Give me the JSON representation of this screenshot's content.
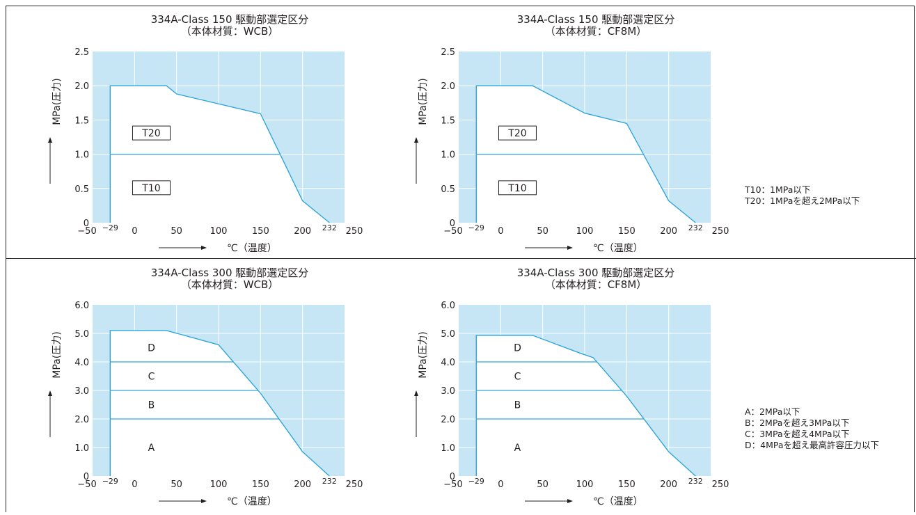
{
  "chart_data": [
    {
      "type": "area",
      "title": "334A-Class 150 駆動部選定区分",
      "subtitle": "（本体材質：WCB）",
      "xlabel": "℃（温度）",
      "ylabel": "MPa(圧力)",
      "xlim": [
        -50,
        250
      ],
      "ylim": [
        0,
        2.5
      ],
      "x_ticks": [
        "−50",
        "−29",
        "0",
        "50",
        "100",
        "150",
        "200",
        "232",
        "250"
      ],
      "x_tick_values": [
        -50,
        -29,
        0,
        50,
        100,
        150,
        200,
        232,
        250
      ],
      "y_ticks": [
        "0",
        "0.5",
        "1.0",
        "1.5",
        "2.0",
        "2.5"
      ],
      "y_tick_values": [
        0,
        0.5,
        1.0,
        1.5,
        2.0,
        2.5
      ],
      "envelope": [
        [
          -29,
          0
        ],
        [
          -29,
          2.0
        ],
        [
          38,
          2.0
        ],
        [
          50,
          1.88
        ],
        [
          150,
          1.59
        ],
        [
          200,
          0.32
        ],
        [
          232,
          0
        ]
      ],
      "divisions": [
        1.0
      ],
      "region_labels": [
        {
          "label": "T20",
          "x": 20,
          "y": 1.31
        },
        {
          "label": "T10",
          "x": 20,
          "y": 0.51
        }
      ]
    },
    {
      "type": "area",
      "title": "334A-Class 150 駆動部選定区分",
      "subtitle": "（本体材質：CF8M）",
      "xlabel": "℃（温度）",
      "ylabel": "MPa(圧力)",
      "xlim": [
        -50,
        250
      ],
      "ylim": [
        0,
        2.5
      ],
      "x_ticks": [
        "−50",
        "−29",
        "0",
        "50",
        "100",
        "150",
        "200",
        "232",
        "250"
      ],
      "x_tick_values": [
        -50,
        -29,
        0,
        50,
        100,
        150,
        200,
        232,
        250
      ],
      "y_ticks": [
        "0",
        "0.5",
        "1.0",
        "1.5",
        "2.0",
        "2.5"
      ],
      "y_tick_values": [
        0,
        0.5,
        1.0,
        1.5,
        2.0,
        2.5
      ],
      "envelope": [
        [
          -29,
          0
        ],
        [
          -29,
          2.0
        ],
        [
          38,
          2.0
        ],
        [
          100,
          1.6
        ],
        [
          150,
          1.45
        ],
        [
          200,
          0.32
        ],
        [
          232,
          0
        ]
      ],
      "divisions": [
        1.0
      ],
      "region_labels": [
        {
          "label": "T20",
          "x": 20,
          "y": 1.31
        },
        {
          "label": "T10",
          "x": 20,
          "y": 0.51
        }
      ]
    },
    {
      "type": "area",
      "title": "334A-Class 300 駆動部選定区分",
      "subtitle": "（本体材質：WCB）",
      "xlabel": "℃（温度）",
      "ylabel": "MPa(圧力)",
      "xlim": [
        -50,
        250
      ],
      "ylim": [
        0,
        6.0
      ],
      "x_ticks": [
        "−50",
        "−29",
        "0",
        "50",
        "100",
        "150",
        "200",
        "232",
        "250"
      ],
      "x_tick_values": [
        -50,
        -29,
        0,
        50,
        100,
        150,
        200,
        232,
        250
      ],
      "y_ticks": [
        "0",
        "1.0",
        "2.0",
        "3.0",
        "4.0",
        "5.0",
        "6.0"
      ],
      "y_tick_values": [
        0,
        1.0,
        2.0,
        3.0,
        4.0,
        5.0,
        6.0
      ],
      "envelope": [
        [
          -29,
          0
        ],
        [
          -29,
          5.1
        ],
        [
          38,
          5.1
        ],
        [
          100,
          4.6
        ],
        [
          150,
          2.9
        ],
        [
          200,
          0.85
        ],
        [
          232,
          0
        ]
      ],
      "divisions": [
        2.0,
        3.0,
        4.0
      ],
      "region_labels": [
        {
          "label": "D",
          "x": 20,
          "y": 4.5
        },
        {
          "label": "C",
          "x": 20,
          "y": 3.5
        },
        {
          "label": "B",
          "x": 20,
          "y": 2.5
        },
        {
          "label": "A",
          "x": 20,
          "y": 1.0
        }
      ]
    },
    {
      "type": "area",
      "title": "334A-Class 300 駆動部選定区分",
      "subtitle": "（本体材質：CF8M）",
      "xlabel": "℃（温度）",
      "ylabel": "MPa(圧力)",
      "xlim": [
        -50,
        250
      ],
      "ylim": [
        0,
        6.0
      ],
      "x_ticks": [
        "−50",
        "−29",
        "0",
        "50",
        "100",
        "150",
        "200",
        "232",
        "250"
      ],
      "x_tick_values": [
        -50,
        -29,
        0,
        50,
        100,
        150,
        200,
        232,
        250
      ],
      "y_ticks": [
        "0",
        "1.0",
        "2.0",
        "3.0",
        "4.0",
        "5.0",
        "6.0"
      ],
      "y_tick_values": [
        0,
        1.0,
        2.0,
        3.0,
        4.0,
        5.0,
        6.0
      ],
      "envelope": [
        [
          -29,
          0
        ],
        [
          -29,
          4.93
        ],
        [
          38,
          4.93
        ],
        [
          95,
          4.3
        ],
        [
          110,
          4.15
        ],
        [
          150,
          2.8
        ],
        [
          200,
          0.85
        ],
        [
          232,
          0
        ]
      ],
      "divisions": [
        2.0,
        3.0,
        4.0
      ],
      "region_labels": [
        {
          "label": "D",
          "x": 20,
          "y": 4.5
        },
        {
          "label": "C",
          "x": 20,
          "y": 3.5
        },
        {
          "label": "B",
          "x": 20,
          "y": 2.5
        },
        {
          "label": "A",
          "x": 20,
          "y": 1.0
        }
      ]
    }
  ],
  "legend_top": [
    "T10：1MPa以下",
    "T20：1MPaを超え2MPa以下"
  ],
  "legend_bottom": [
    "A：2MPa以下",
    "B：2MPaを超え3MPa以下",
    "C：3MPaを超え4MPa以下",
    "D：4MPaを超え最高許容圧力以下"
  ],
  "colors": {
    "fill": "#c6e6f5",
    "grid": "#ffffff",
    "line": "#2fa6d9",
    "text": "#231f20"
  }
}
